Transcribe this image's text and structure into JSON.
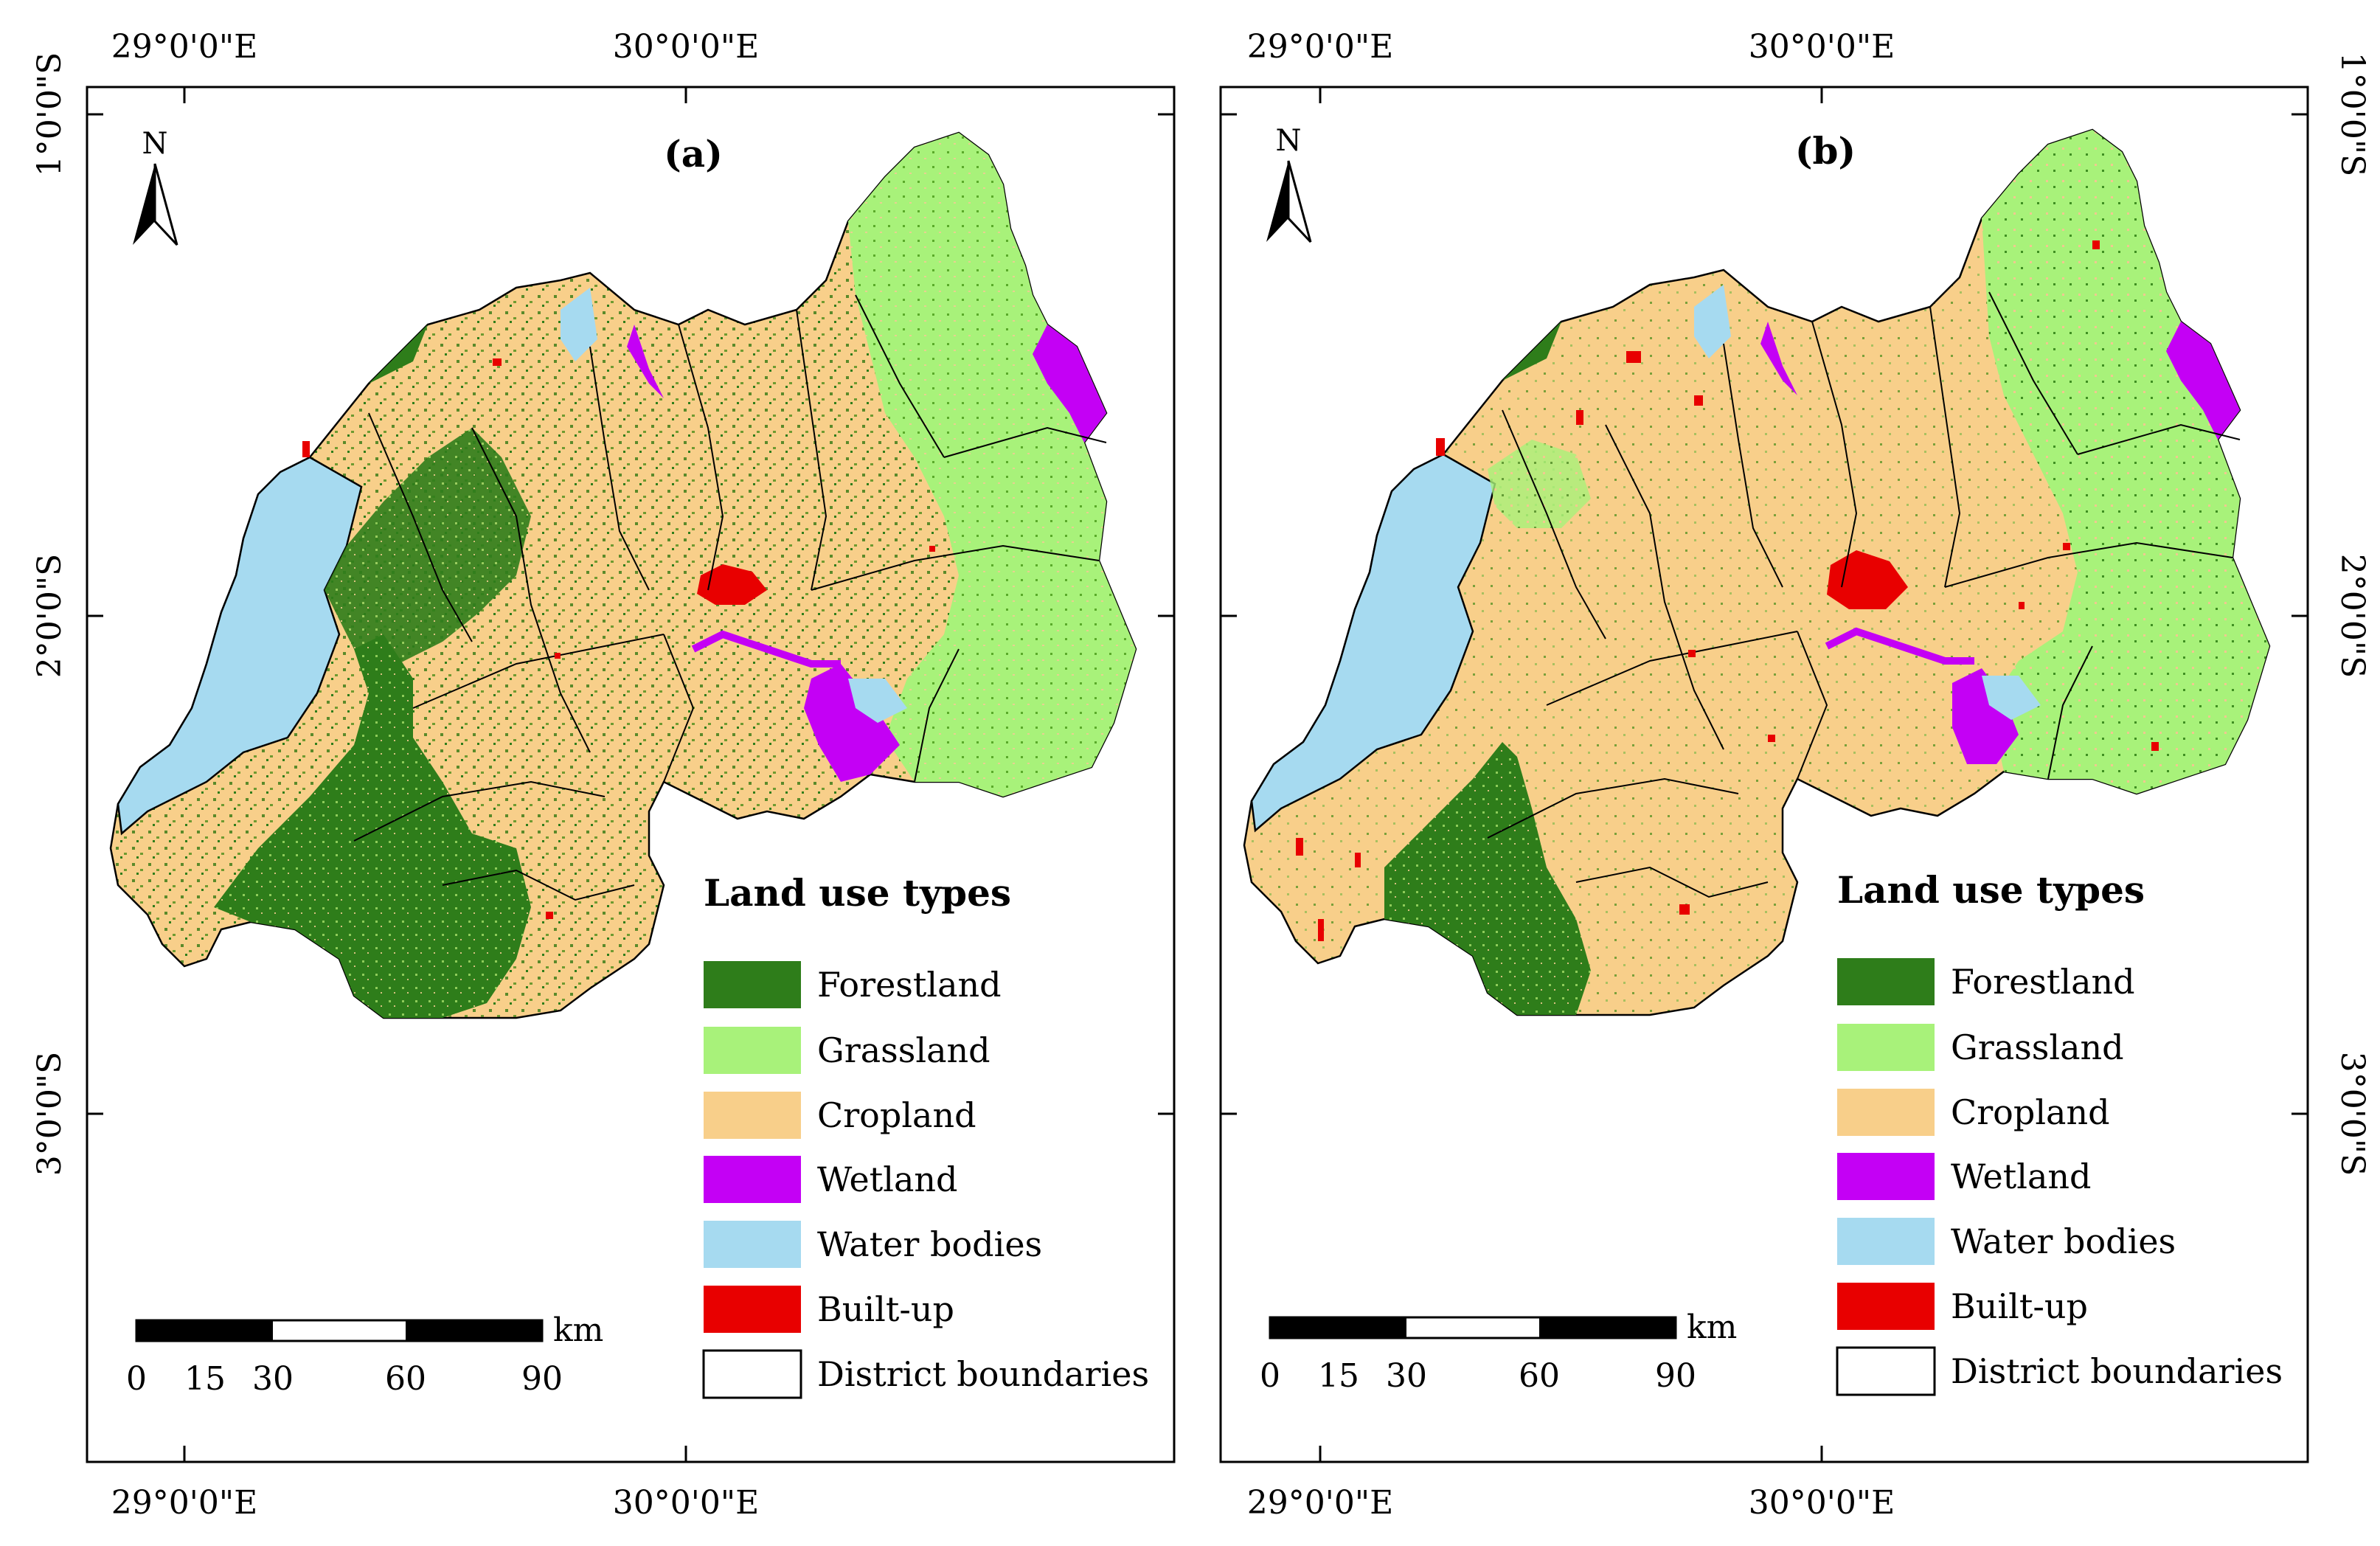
{
  "axes": {
    "lon_labels": [
      "29°0'0\"E",
      "30°0'0\"E"
    ],
    "lat_labels": [
      "1°0'0\"S",
      "2°0'0\"S",
      "3°0'0\"S"
    ]
  },
  "north_label": "N",
  "panels": [
    {
      "label": "(a)"
    },
    {
      "label": "(b)"
    }
  ],
  "legend": {
    "title": "Land use types",
    "items": [
      {
        "name": "Forestland",
        "color": "#2e7d1a"
      },
      {
        "name": "Grassland",
        "color": "#a8f27a"
      },
      {
        "name": "Cropland",
        "color": "#f8cf8a"
      },
      {
        "name": "Wetland",
        "color": "#c400f5"
      },
      {
        "name": "Water bodies",
        "color": "#a6daf0"
      },
      {
        "name": "Built-up",
        "color": "#e80000"
      },
      {
        "name": "District boundaries",
        "color": "#ffffff"
      }
    ]
  },
  "scale_bar": {
    "unit": "km",
    "ticks": [
      "0",
      "15",
      "30",
      "60",
      "90"
    ]
  }
}
